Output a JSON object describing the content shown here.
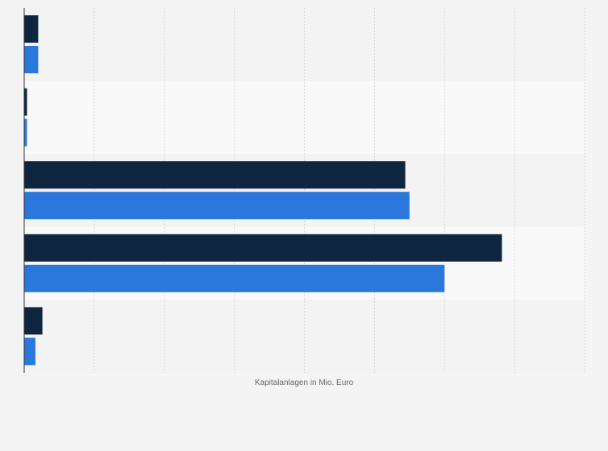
{
  "chart_data": {
    "type": "bar",
    "orientation": "horizontal",
    "title": "",
    "xlabel": "Kapitalanlagen in Mio. Euro",
    "ylabel": "",
    "categories": [
      "",
      "",
      "",
      "",
      ""
    ],
    "series": [
      {
        "values": [
          1.0,
          0.2,
          27.2,
          34.1,
          1.3
        ]
      },
      {
        "values": [
          1.0,
          0.2,
          27.5,
          30.0,
          0.8
        ]
      }
    ],
    "xlim": [
      0,
      40
    ],
    "grid": true,
    "legend": "none",
    "colors": {
      "series_1": "#0f2640",
      "series_2": "#2a78dc",
      "band_a": "#f3f3f3",
      "band_b": "#f9f9f9",
      "grid": "#d9d9d9",
      "axis": "#333333"
    }
  }
}
